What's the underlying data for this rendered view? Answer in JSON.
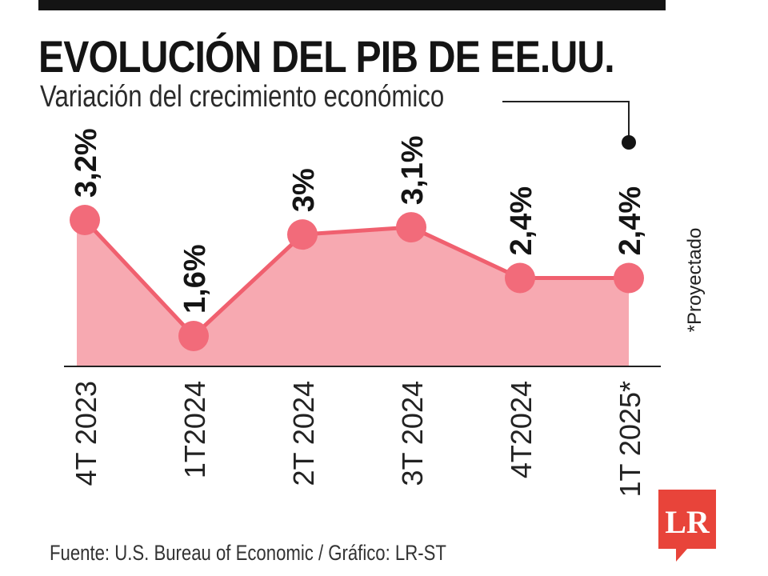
{
  "header": {
    "title": "EVOLUCIÓN DEL PIB DE EE.UU.",
    "subtitle": "Variación del crecimiento económico"
  },
  "chart_data": {
    "type": "area",
    "categories": [
      "4T 2023",
      "1T2024",
      "2T 2024",
      "3T 2024",
      "4T2024",
      "1T 2025*"
    ],
    "values": [
      3.2,
      1.6,
      3.0,
      3.1,
      2.4,
      2.4
    ],
    "value_labels": [
      "3,2%",
      "1,6%",
      "3%",
      "3,1%",
      "2,4%",
      "2,4%"
    ],
    "projected_note": "*Proyectado",
    "colors": {
      "fill": "#f7a9b1",
      "line": "#f0606f",
      "marker": "#f26b7a",
      "baseline": "#222222"
    }
  },
  "footer": {
    "source": "Fuente: U.S. Bureau of Economic / Gráfico: LR-ST"
  },
  "logo": {
    "text": "LR",
    "color": "#e8443a"
  }
}
